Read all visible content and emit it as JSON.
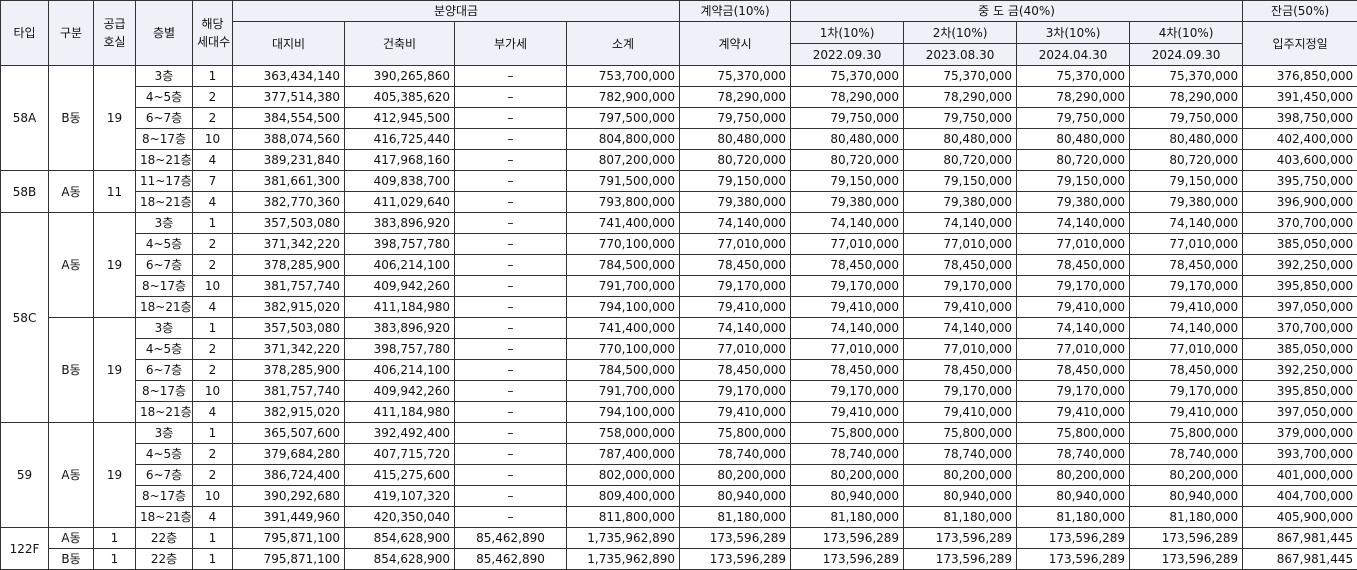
{
  "headers": {
    "type": "타입",
    "block": "구분",
    "supply_units_1": "공급",
    "supply_units_2": "호실",
    "floor": "층별",
    "applicable_units_1": "해당",
    "applicable_units_2": "세대수",
    "sale_price": "분양대금",
    "land": "대지비",
    "building": "건축비",
    "vat": "부가세",
    "subtotal": "소계",
    "contract": "계약금(10%)",
    "contract_time": "계약시",
    "middle": "중 도 금(40%)",
    "balance": "잔금(50%)",
    "move_in": "입주지정일",
    "installments": [
      {
        "label": "1차(10%)",
        "date": "2022.09.30"
      },
      {
        "label": "2차(10%)",
        "date": "2023.08.30"
      },
      {
        "label": "3차(10%)",
        "date": "2024.04.30"
      },
      {
        "label": "4차(10%)",
        "date": "2024.09.30"
      }
    ]
  },
  "groups": [
    {
      "type": "58A",
      "blocks": [
        {
          "name": "B동",
          "units": "19",
          "rows": [
            {
              "floor": "3층",
              "count": "1",
              "land": "363,434,140",
              "building": "390,265,860",
              "vat": "–",
              "subtotal": "753,700,000",
              "contract": "75,370,000",
              "m1": "75,370,000",
              "m2": "75,370,000",
              "m3": "75,370,000",
              "m4": "75,370,000",
              "balance": "376,850,000"
            },
            {
              "floor": "4~5층",
              "count": "2",
              "land": "377,514,380",
              "building": "405,385,620",
              "vat": "–",
              "subtotal": "782,900,000",
              "contract": "78,290,000",
              "m1": "78,290,000",
              "m2": "78,290,000",
              "m3": "78,290,000",
              "m4": "78,290,000",
              "balance": "391,450,000"
            },
            {
              "floor": "6~7층",
              "count": "2",
              "land": "384,554,500",
              "building": "412,945,500",
              "vat": "–",
              "subtotal": "797,500,000",
              "contract": "79,750,000",
              "m1": "79,750,000",
              "m2": "79,750,000",
              "m3": "79,750,000",
              "m4": "79,750,000",
              "balance": "398,750,000"
            },
            {
              "floor": "8~17층",
              "count": "10",
              "land": "388,074,560",
              "building": "416,725,440",
              "vat": "–",
              "subtotal": "804,800,000",
              "contract": "80,480,000",
              "m1": "80,480,000",
              "m2": "80,480,000",
              "m3": "80,480,000",
              "m4": "80,480,000",
              "balance": "402,400,000"
            },
            {
              "floor": "18~21층",
              "count": "4",
              "land": "389,231,840",
              "building": "417,968,160",
              "vat": "–",
              "subtotal": "807,200,000",
              "contract": "80,720,000",
              "m1": "80,720,000",
              "m2": "80,720,000",
              "m3": "80,720,000",
              "m4": "80,720,000",
              "balance": "403,600,000"
            }
          ]
        }
      ]
    },
    {
      "type": "58B",
      "blocks": [
        {
          "name": "A동",
          "units": "11",
          "rows": [
            {
              "floor": "11~17층",
              "count": "7",
              "land": "381,661,300",
              "building": "409,838,700",
              "vat": "–",
              "subtotal": "791,500,000",
              "contract": "79,150,000",
              "m1": "79,150,000",
              "m2": "79,150,000",
              "m3": "79,150,000",
              "m4": "79,150,000",
              "balance": "395,750,000"
            },
            {
              "floor": "18~21층",
              "count": "4",
              "land": "382,770,360",
              "building": "411,029,640",
              "vat": "–",
              "subtotal": "793,800,000",
              "contract": "79,380,000",
              "m1": "79,380,000",
              "m2": "79,380,000",
              "m3": "79,380,000",
              "m4": "79,380,000",
              "balance": "396,900,000"
            }
          ]
        }
      ]
    },
    {
      "type": "58C",
      "blocks": [
        {
          "name": "A동",
          "units": "19",
          "rows": [
            {
              "floor": "3층",
              "count": "1",
              "land": "357,503,080",
              "building": "383,896,920",
              "vat": "–",
              "subtotal": "741,400,000",
              "contract": "74,140,000",
              "m1": "74,140,000",
              "m2": "74,140,000",
              "m3": "74,140,000",
              "m4": "74,140,000",
              "balance": "370,700,000"
            },
            {
              "floor": "4~5층",
              "count": "2",
              "land": "371,342,220",
              "building": "398,757,780",
              "vat": "–",
              "subtotal": "770,100,000",
              "contract": "77,010,000",
              "m1": "77,010,000",
              "m2": "77,010,000",
              "m3": "77,010,000",
              "m4": "77,010,000",
              "balance": "385,050,000"
            },
            {
              "floor": "6~7층",
              "count": "2",
              "land": "378,285,900",
              "building": "406,214,100",
              "vat": "–",
              "subtotal": "784,500,000",
              "contract": "78,450,000",
              "m1": "78,450,000",
              "m2": "78,450,000",
              "m3": "78,450,000",
              "m4": "78,450,000",
              "balance": "392,250,000"
            },
            {
              "floor": "8~17층",
              "count": "10",
              "land": "381,757,740",
              "building": "409,942,260",
              "vat": "–",
              "subtotal": "791,700,000",
              "contract": "79,170,000",
              "m1": "79,170,000",
              "m2": "79,170,000",
              "m3": "79,170,000",
              "m4": "79,170,000",
              "balance": "395,850,000"
            },
            {
              "floor": "18~21층",
              "count": "4",
              "land": "382,915,020",
              "building": "411,184,980",
              "vat": "–",
              "subtotal": "794,100,000",
              "contract": "79,410,000",
              "m1": "79,410,000",
              "m2": "79,410,000",
              "m3": "79,410,000",
              "m4": "79,410,000",
              "balance": "397,050,000"
            }
          ]
        },
        {
          "name": "B동",
          "units": "19",
          "rows": [
            {
              "floor": "3층",
              "count": "1",
              "land": "357,503,080",
              "building": "383,896,920",
              "vat": "–",
              "subtotal": "741,400,000",
              "contract": "74,140,000",
              "m1": "74,140,000",
              "m2": "74,140,000",
              "m3": "74,140,000",
              "m4": "74,140,000",
              "balance": "370,700,000"
            },
            {
              "floor": "4~5층",
              "count": "2",
              "land": "371,342,220",
              "building": "398,757,780",
              "vat": "–",
              "subtotal": "770,100,000",
              "contract": "77,010,000",
              "m1": "77,010,000",
              "m2": "77,010,000",
              "m3": "77,010,000",
              "m4": "77,010,000",
              "balance": "385,050,000"
            },
            {
              "floor": "6~7층",
              "count": "2",
              "land": "378,285,900",
              "building": "406,214,100",
              "vat": "–",
              "subtotal": "784,500,000",
              "contract": "78,450,000",
              "m1": "78,450,000",
              "m2": "78,450,000",
              "m3": "78,450,000",
              "m4": "78,450,000",
              "balance": "392,250,000"
            },
            {
              "floor": "8~17층",
              "count": "10",
              "land": "381,757,740",
              "building": "409,942,260",
              "vat": "–",
              "subtotal": "791,700,000",
              "contract": "79,170,000",
              "m1": "79,170,000",
              "m2": "79,170,000",
              "m3": "79,170,000",
              "m4": "79,170,000",
              "balance": "395,850,000"
            },
            {
              "floor": "18~21층",
              "count": "4",
              "land": "382,915,020",
              "building": "411,184,980",
              "vat": "–",
              "subtotal": "794,100,000",
              "contract": "79,410,000",
              "m1": "79,410,000",
              "m2": "79,410,000",
              "m3": "79,410,000",
              "m4": "79,410,000",
              "balance": "397,050,000"
            }
          ]
        }
      ]
    },
    {
      "type": "59",
      "blocks": [
        {
          "name": "A동",
          "units": "19",
          "rows": [
            {
              "floor": "3층",
              "count": "1",
              "land": "365,507,600",
              "building": "392,492,400",
              "vat": "–",
              "subtotal": "758,000,000",
              "contract": "75,800,000",
              "m1": "75,800,000",
              "m2": "75,800,000",
              "m3": "75,800,000",
              "m4": "75,800,000",
              "balance": "379,000,000"
            },
            {
              "floor": "4~5층",
              "count": "2",
              "land": "379,684,280",
              "building": "407,715,720",
              "vat": "–",
              "subtotal": "787,400,000",
              "contract": "78,740,000",
              "m1": "78,740,000",
              "m2": "78,740,000",
              "m3": "78,740,000",
              "m4": "78,740,000",
              "balance": "393,700,000"
            },
            {
              "floor": "6~7층",
              "count": "2",
              "land": "386,724,400",
              "building": "415,275,600",
              "vat": "–",
              "subtotal": "802,000,000",
              "contract": "80,200,000",
              "m1": "80,200,000",
              "m2": "80,200,000",
              "m3": "80,200,000",
              "m4": "80,200,000",
              "balance": "401,000,000"
            },
            {
              "floor": "8~17층",
              "count": "10",
              "land": "390,292,680",
              "building": "419,107,320",
              "vat": "–",
              "subtotal": "809,400,000",
              "contract": "80,940,000",
              "m1": "80,940,000",
              "m2": "80,940,000",
              "m3": "80,940,000",
              "m4": "80,940,000",
              "balance": "404,700,000"
            },
            {
              "floor": "18~21층",
              "count": "4",
              "land": "391,449,960",
              "building": "420,350,040",
              "vat": "–",
              "subtotal": "811,800,000",
              "contract": "81,180,000",
              "m1": "81,180,000",
              "m2": "81,180,000",
              "m3": "81,180,000",
              "m4": "81,180,000",
              "balance": "405,900,000"
            }
          ]
        }
      ]
    },
    {
      "type": "122F",
      "blocks": [
        {
          "name": "A동",
          "units": "1",
          "rows": [
            {
              "floor": "22층",
              "count": "1",
              "land": "795,871,100",
              "building": "854,628,900",
              "vat": "85,462,890",
              "subtotal": "1,735,962,890",
              "contract": "173,596,289",
              "m1": "173,596,289",
              "m2": "173,596,289",
              "m3": "173,596,289",
              "m4": "173,596,289",
              "balance": "867,981,445"
            }
          ]
        },
        {
          "name": "B동",
          "units": "1",
          "rows": [
            {
              "floor": "22층",
              "count": "1",
              "land": "795,871,100",
              "building": "854,628,900",
              "vat": "85,462,890",
              "subtotal": "1,735,962,890",
              "contract": "173,596,289",
              "m1": "173,596,289",
              "m2": "173,596,289",
              "m3": "173,596,289",
              "m4": "173,596,289",
              "balance": "867,981,445"
            }
          ]
        }
      ]
    }
  ]
}
